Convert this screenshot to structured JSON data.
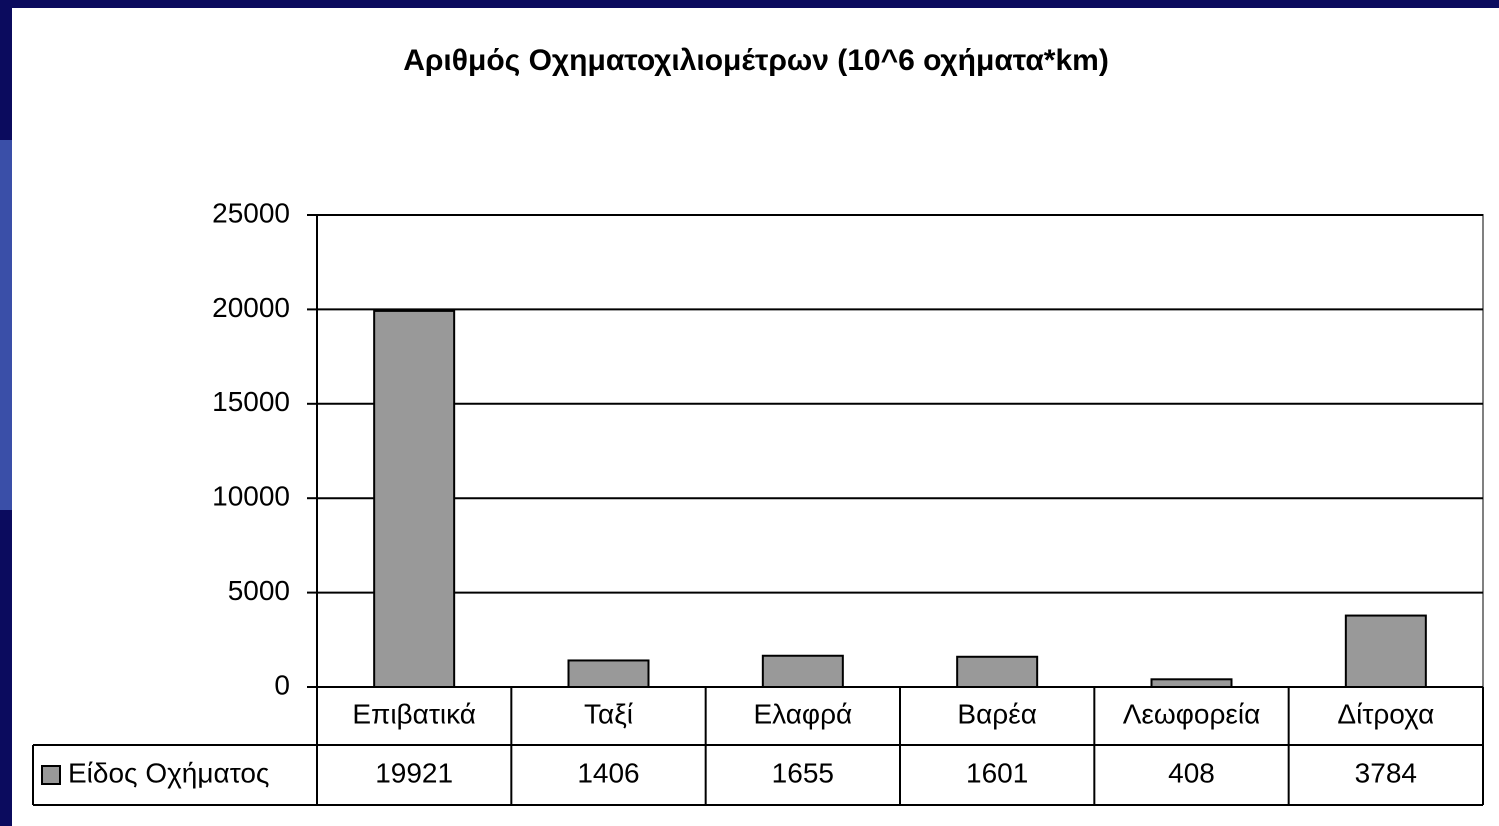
{
  "chart_data": {
    "type": "bar",
    "title": "Αριθμός Οχηματοχιλιομέτρων (10^6 οχήματα*km)",
    "categories": [
      "Επιβατικά",
      "Ταξί",
      "Ελαφρά",
      "Βαρέα",
      "Λεωφορεία",
      "Δίτροχα"
    ],
    "series": [
      {
        "name": "Είδος Οχήματος",
        "color": "#999999",
        "values": [
          19921,
          1406,
          1655,
          1601,
          408,
          3784
        ]
      }
    ],
    "ylim": [
      0,
      25000
    ],
    "yticks": [
      0,
      5000,
      10000,
      15000,
      20000,
      25000
    ],
    "grid": true,
    "data_table": true
  }
}
